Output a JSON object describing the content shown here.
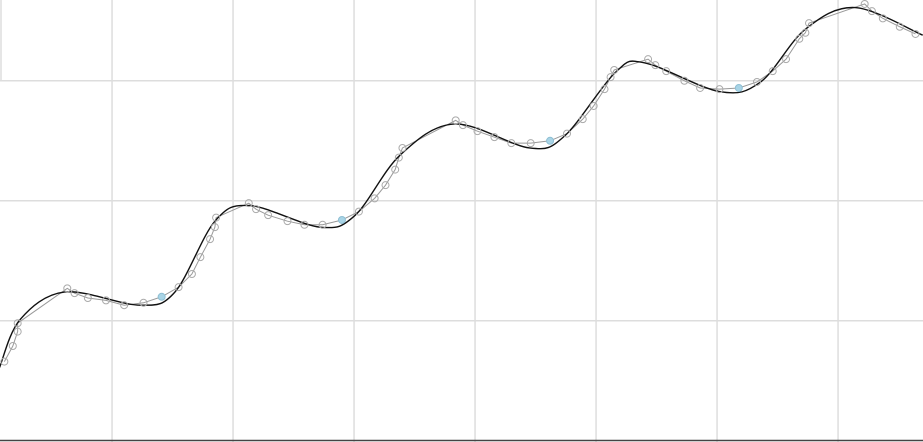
{
  "chart_data": {
    "type": "line",
    "title": "",
    "xlabel": "",
    "ylabel": "",
    "xlim": [
      0.074,
      7.702
    ],
    "ylim": [
      -0.01,
      3.673
    ],
    "grid": true,
    "x_gridlines": [
      1,
      2,
      3,
      4,
      5,
      6,
      7
    ],
    "y_gridlines": [
      0,
      1,
      2,
      3
    ],
    "colors": {
      "grid": "#dddddd",
      "axis": "#444444",
      "points": "#aaaaaa",
      "noisy_line": "#999999",
      "fit_line": "#111111",
      "highlight": "#a8d4e6"
    },
    "series": [
      {
        "kind": "samples",
        "points": [
          [
            0.11,
            0.66
          ],
          [
            0.18,
            0.79
          ],
          [
            0.22,
            0.91
          ],
          [
            0.22,
            0.98
          ],
          [
            0.63,
            1.27
          ],
          [
            0.69,
            1.23
          ],
          [
            0.8,
            1.19
          ],
          [
            0.95,
            1.17
          ],
          [
            1.1,
            1.13
          ],
          [
            1.26,
            1.15
          ],
          [
            1.41,
            1.2,
            "highlight"
          ],
          [
            1.55,
            1.28
          ],
          [
            1.66,
            1.39
          ],
          [
            1.73,
            1.53
          ],
          [
            1.81,
            1.68
          ],
          [
            1.85,
            1.78
          ],
          [
            1.86,
            1.86
          ],
          [
            2.13,
            1.98
          ],
          [
            2.19,
            1.93
          ],
          [
            2.29,
            1.88
          ],
          [
            2.45,
            1.83
          ],
          [
            2.59,
            1.8
          ],
          [
            2.74,
            1.8
          ],
          [
            2.9,
            1.84,
            "highlight"
          ],
          [
            3.04,
            1.91
          ],
          [
            3.17,
            2.02
          ],
          [
            3.26,
            2.13
          ],
          [
            3.34,
            2.26
          ],
          [
            3.37,
            2.36
          ],
          [
            3.4,
            2.44
          ],
          [
            3.84,
            2.67
          ],
          [
            3.9,
            2.63
          ],
          [
            4.02,
            2.58
          ],
          [
            4.16,
            2.53
          ],
          [
            4.3,
            2.48
          ],
          [
            4.46,
            2.48
          ],
          [
            4.62,
            2.5,
            "highlight"
          ],
          [
            4.76,
            2.56
          ],
          [
            4.89,
            2.68
          ],
          [
            4.98,
            2.79
          ],
          [
            5.07,
            2.93
          ],
          [
            5.12,
            3.03
          ],
          [
            5.15,
            3.09
          ],
          [
            5.43,
            3.18
          ],
          [
            5.49,
            3.13
          ],
          [
            5.58,
            3.08
          ],
          [
            5.73,
            3.0
          ],
          [
            5.86,
            2.94
          ],
          [
            6.02,
            2.93
          ],
          [
            6.18,
            2.94,
            "highlight"
          ],
          [
            6.33,
            2.99
          ],
          [
            6.46,
            3.08
          ],
          [
            6.57,
            3.18
          ],
          [
            6.68,
            3.35
          ],
          [
            6.73,
            3.4
          ],
          [
            6.76,
            3.48
          ],
          [
            7.22,
            3.64
          ],
          [
            7.28,
            3.58
          ],
          [
            7.37,
            3.52
          ],
          [
            7.51,
            3.45
          ],
          [
            7.64,
            3.39
          ]
        ]
      },
      {
        "kind": "fit",
        "points": [
          [
            0.07,
            0.61
          ],
          [
            0.24,
            1.01
          ],
          [
            0.61,
            1.24
          ],
          [
            1.23,
            1.13
          ],
          [
            1.52,
            1.24
          ],
          [
            1.85,
            1.83
          ],
          [
            2.14,
            1.96
          ],
          [
            2.72,
            1.78
          ],
          [
            3.01,
            1.88
          ],
          [
            3.38,
            2.38
          ],
          [
            3.83,
            2.64
          ],
          [
            4.45,
            2.44
          ],
          [
            4.74,
            2.54
          ],
          [
            5.16,
            3.07
          ],
          [
            5.4,
            3.15
          ],
          [
            6.02,
            2.91
          ],
          [
            6.36,
            2.99
          ],
          [
            6.73,
            3.43
          ],
          [
            7.14,
            3.61
          ],
          [
            7.7,
            3.38
          ]
        ]
      }
    ]
  }
}
